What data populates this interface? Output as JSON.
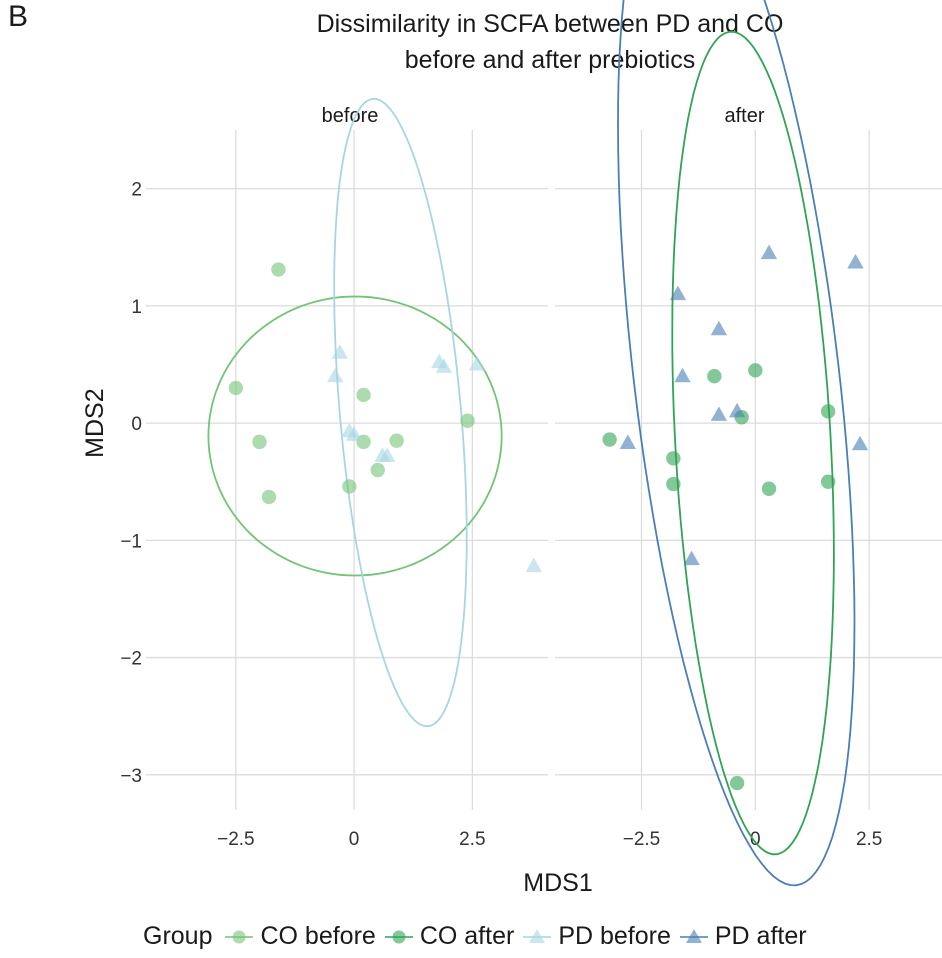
{
  "panel_label": "B",
  "chart_data": {
    "type": "scatter",
    "title": "Dissimilarity in SCFA between PD and CO",
    "subtitle": "before and after prebiotics",
    "xlabel": "MDS1",
    "ylabel": "MDS2",
    "xlim": [
      -4.4,
      4.1
    ],
    "ylim": [
      -3.3,
      2.5
    ],
    "x_ticks": [
      -2.5,
      0,
      2.5
    ],
    "x_tick_labels": [
      "−2.5",
      "0",
      "2.5"
    ],
    "y_ticks": [
      -3,
      -2,
      -1,
      0,
      1,
      2
    ],
    "y_tick_labels": [
      "−3",
      "−2",
      "−1",
      "0",
      "1",
      "2"
    ],
    "grid": true,
    "legend_position": "bottom",
    "legend_title": "Group",
    "facets": [
      "before",
      "after"
    ],
    "groups": [
      {
        "name": "CO before",
        "color": "#74c476",
        "shape": "circle"
      },
      {
        "name": "CO after",
        "color": "#31a354",
        "shape": "circle"
      },
      {
        "name": "PD before",
        "color": "#a6d6e4",
        "shape": "triangle"
      },
      {
        "name": "PD after",
        "color": "#4a7fb5",
        "shape": "triangle"
      }
    ],
    "series": [
      {
        "facet": 0,
        "group": 0,
        "points": [
          [
            -2.5,
            0.3
          ],
          [
            -1.6,
            1.31
          ],
          [
            -2.0,
            -0.16
          ],
          [
            -1.8,
            -0.63
          ],
          [
            0.2,
            0.24
          ],
          [
            0.2,
            -0.16
          ],
          [
            -0.1,
            -0.54
          ],
          [
            0.5,
            -0.4
          ],
          [
            0.9,
            -0.15
          ],
          [
            2.4,
            0.02
          ]
        ]
      },
      {
        "facet": 0,
        "group": 2,
        "points": [
          [
            -0.4,
            0.4
          ],
          [
            -0.3,
            0.6
          ],
          [
            -0.1,
            -0.07
          ],
          [
            0.0,
            -0.1
          ],
          [
            0.6,
            -0.28
          ],
          [
            0.7,
            -0.28
          ],
          [
            1.8,
            0.52
          ],
          [
            1.9,
            0.48
          ],
          [
            2.6,
            0.5
          ],
          [
            3.8,
            -1.22
          ]
        ]
      },
      {
        "facet": 1,
        "group": 1,
        "points": [
          [
            -3.2,
            -0.14
          ],
          [
            -1.8,
            -0.3
          ],
          [
            -1.8,
            -0.52
          ],
          [
            -0.9,
            0.4
          ],
          [
            0.0,
            0.45
          ],
          [
            -0.3,
            0.05
          ],
          [
            0.3,
            -0.56
          ],
          [
            1.6,
            0.1
          ],
          [
            1.6,
            -0.5
          ],
          [
            -0.4,
            -3.07
          ]
        ]
      },
      {
        "facet": 1,
        "group": 3,
        "points": [
          [
            -2.8,
            -0.17
          ],
          [
            -1.7,
            1.1
          ],
          [
            -1.6,
            0.4
          ],
          [
            -0.8,
            0.8
          ],
          [
            -0.8,
            0.07
          ],
          [
            -0.4,
            0.1
          ],
          [
            -1.4,
            -1.16
          ],
          [
            0.3,
            1.45
          ],
          [
            2.2,
            1.37
          ],
          [
            2.3,
            -0.18
          ]
        ]
      }
    ],
    "ellipses": [
      {
        "facet": 0,
        "group": 0,
        "center": [
          0.02,
          -0.11
        ],
        "radii": [
          3.1,
          1.19
        ],
        "angle": 0
      },
      {
        "facet": 0,
        "group": 2,
        "center": [
          0.98,
          0.09
        ],
        "radii": [
          2.75,
          1.25
        ],
        "angle": -75
      },
      {
        "facet": 1,
        "group": 1,
        "center": [
          -0.05,
          -0.17
        ],
        "radii": [
          3.55,
          1.69
        ],
        "angle": -80
      },
      {
        "facet": 1,
        "group": 3,
        "center": [
          -0.42,
          0.42
        ],
        "radii": [
          4.6,
          2.15
        ],
        "angle": -69
      }
    ]
  }
}
